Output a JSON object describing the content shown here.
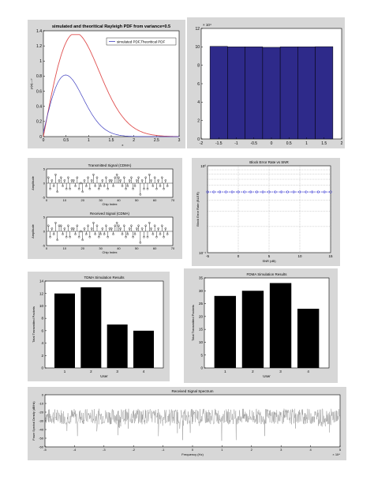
{
  "chart_data": [
    {
      "type": "line",
      "title": "simulated and theoritical Rayleigh PDF from variance=0.5",
      "xlabel": "x",
      "ylabel": "p(x)--->",
      "xlim": [
        0,
        3
      ],
      "ylim": [
        0,
        1.4
      ],
      "xticks": [
        "0",
        "0.5",
        "1",
        "1.5",
        "2",
        "2.5",
        "3"
      ],
      "yticks": [
        "0",
        "0.2",
        "0.4",
        "0.6",
        "0.8",
        "1",
        "1.2",
        "1.4"
      ],
      "legend": "simulated PDF,Theoritical PDF",
      "legend_position": "top-right",
      "colors": {
        "theory": "#e05050",
        "sim": "#4040c0"
      }
    },
    {
      "type": "bar",
      "title": "",
      "exponent_label": "× 10⁴",
      "xlim": [
        -2,
        2
      ],
      "ylim": [
        0,
        12
      ],
      "xticks": [
        "-2",
        "-1.5",
        "-1",
        "-0.5",
        "0",
        "0.5",
        "1",
        "1.5",
        "2"
      ],
      "yticks": [
        "0",
        "2",
        "4",
        "6",
        "8",
        "10",
        "12"
      ],
      "x": [
        -1.5,
        -1.0,
        -0.5,
        0,
        0.5,
        1.0,
        1.5
      ],
      "values": [
        10.05,
        10.0,
        10.0,
        9.95,
        10.0,
        10.0,
        10.02
      ],
      "bar_color": "#2e2a8a"
    },
    {
      "type": "scatter",
      "subplots": [
        {
          "title": "Transmitted Signal (CDMA)",
          "ylabel": "Amplitude",
          "xlabel": "Chip Index"
        },
        {
          "title": "Received Signal (CDMA)",
          "ylabel": "Amplitude",
          "xlabel": "Chip Index"
        }
      ],
      "xlim": [
        0,
        70
      ],
      "ylim": [
        -5,
        5
      ],
      "xticks": [
        "0",
        "10",
        "20",
        "30",
        "40",
        "50",
        "60",
        "70"
      ],
      "yticks": [
        "5",
        "0",
        "-5"
      ],
      "tx": [
        2,
        -2,
        1,
        -1,
        3,
        -3,
        1,
        2,
        -1,
        1,
        -2,
        2,
        -2,
        1,
        1,
        -1,
        2,
        -2,
        0,
        -3,
        1,
        -1,
        2,
        -2,
        1,
        3,
        -1,
        2,
        -2,
        -1,
        1,
        -1,
        2,
        -2,
        1,
        1,
        -1,
        2,
        3,
        2,
        1,
        -1,
        2,
        -2,
        -1,
        1,
        2,
        -2,
        -1,
        1,
        2,
        -4,
        1,
        -2,
        2,
        -2,
        3,
        1,
        -1,
        2,
        -2,
        1,
        -1,
        2,
        -2,
        1,
        -1
      ],
      "rx": [
        2,
        -2,
        1,
        -1,
        3,
        -3,
        2,
        2,
        -1,
        1,
        -2,
        2,
        -2,
        1,
        1,
        -1,
        2,
        -2,
        0,
        -3,
        1,
        -1,
        2,
        -2,
        1,
        3,
        -1,
        2,
        -2,
        -1,
        1,
        -1,
        2,
        -2,
        1,
        1,
        -1,
        2,
        3,
        2,
        1,
        -1,
        2,
        -2,
        -1,
        1,
        2,
        -2,
        -1,
        1,
        2,
        -4,
        1,
        -2,
        2,
        -2,
        3,
        1,
        -1,
        2,
        -2,
        1,
        -1,
        2,
        -2,
        1,
        -1
      ]
    },
    {
      "type": "line",
      "title": "Block Error Rate vs SNR",
      "xlabel": "SNR (dB)",
      "ylabel": "Block Error Rate (BLER)",
      "xlim": [
        -5,
        15
      ],
      "xticks": [
        "-5",
        "0",
        "5",
        "10",
        "15"
      ],
      "yticks": [
        "10⁰",
        "10⁻¹"
      ],
      "x": [
        -5,
        -4,
        -3,
        -2,
        -1,
        0,
        1,
        2,
        3,
        4,
        5,
        6,
        7,
        8,
        9,
        10,
        11,
        12,
        13,
        14,
        15
      ],
      "y": [
        0.5,
        0.5,
        0.5,
        0.5,
        0.5,
        0.5,
        0.5,
        0.5,
        0.5,
        0.5,
        0.5,
        0.5,
        0.5,
        0.5,
        0.5,
        0.5,
        0.5,
        0.5,
        0.5,
        0.5,
        0.5
      ],
      "line_color": "#2b2bd8"
    },
    {
      "type": "bar",
      "title": "TDMA Simulation Results",
      "xlabel": "User",
      "ylabel": "Total Transmitted Packets",
      "categories": [
        "1",
        "2",
        "3",
        "4"
      ],
      "values": [
        12,
        13,
        7,
        6
      ],
      "ylim": [
        0,
        14
      ],
      "yticks": [
        "0",
        "2",
        "4",
        "6",
        "8",
        "10",
        "12",
        "14"
      ]
    },
    {
      "type": "bar",
      "title": "FDMA Simulation Results",
      "xlabel": "User",
      "ylabel": "Total Transmitted Packets",
      "categories": [
        "1",
        "2",
        "3",
        "4"
      ],
      "values": [
        28,
        30,
        33,
        23
      ],
      "ylim": [
        0,
        35
      ],
      "yticks": [
        "0",
        "5",
        "10",
        "15",
        "20",
        "25",
        "30",
        "35"
      ]
    },
    {
      "type": "line",
      "title": "Received Signal Spectrum",
      "xlabel": "Frequency (Hz)",
      "ylabel": "Power Spectral Density (dB/Hz)",
      "xlim": [
        -5,
        5
      ],
      "ylim": [
        -60,
        0
      ],
      "xticks": [
        "-5",
        "-4",
        "-3",
        "-2",
        "-1",
        "0",
        "1",
        "2",
        "3",
        "4",
        "5"
      ],
      "yticks": [
        "0",
        "-10",
        "-20",
        "-30",
        "-40",
        "-50",
        "-60"
      ],
      "exponent_label": "× 10⁴",
      "mean": -25,
      "line_color": "#808080"
    }
  ]
}
